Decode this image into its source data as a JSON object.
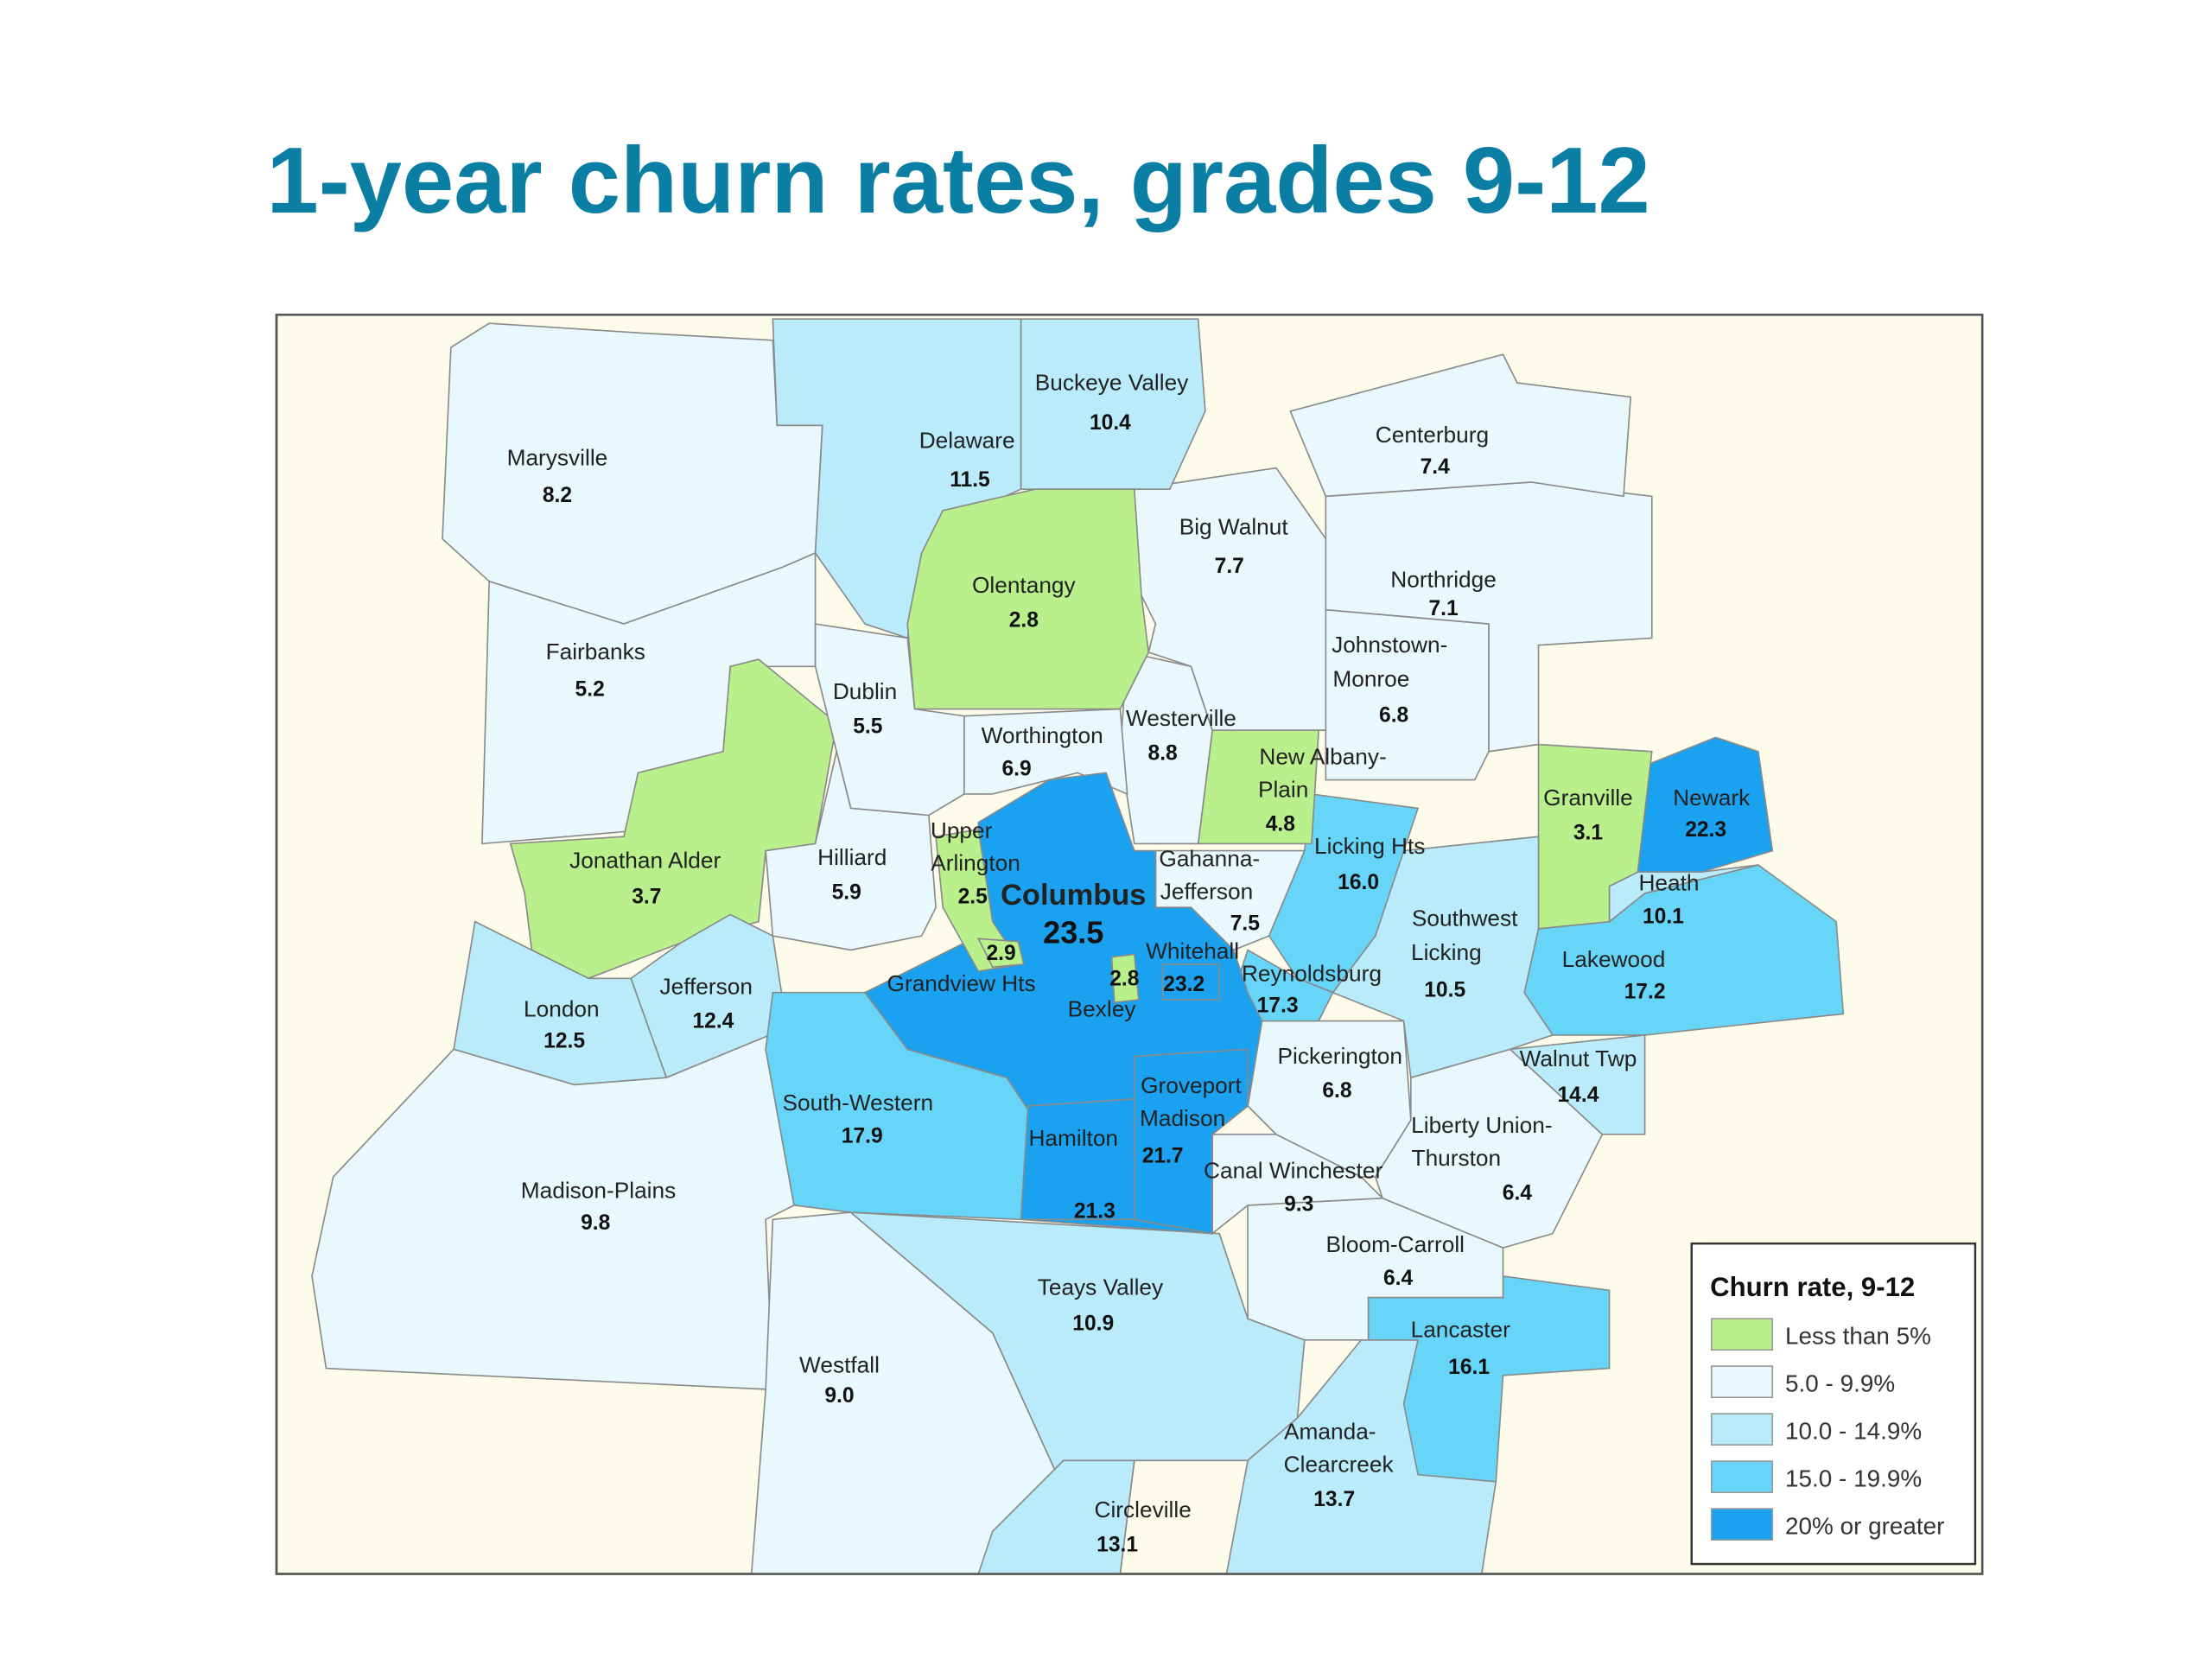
{
  "title": "1-year churn rates, grades 9-12",
  "colors": {
    "title": "#0b7ea3",
    "background_outside": "#fdfbea",
    "classes": [
      "#b9f08c",
      "#e9f8fc",
      "#b9ebfa",
      "#66d5f8",
      "#1aa2f0"
    ]
  },
  "legend": {
    "title": "Churn rate, 9-12",
    "items": [
      {
        "label": "Less than 5%",
        "class": 0
      },
      {
        "label": "5.0 - 9.9%",
        "class": 1
      },
      {
        "label": "10.0 - 14.9%",
        "class": 2
      },
      {
        "label": "15.0 - 19.9%",
        "class": 3
      },
      {
        "label": "20% or greater",
        "class": 4
      }
    ]
  },
  "chart_data": {
    "type": "choropleth",
    "title": "1-year churn rates, grades 9-12",
    "legend_title": "Churn rate, 9-12",
    "legend_position": "bottom-right",
    "districts": [
      {
        "name": "Marysville",
        "value": "8.2",
        "class": 1
      },
      {
        "name": "Fairbanks",
        "value": "5.2",
        "class": 1
      },
      {
        "name": "Jonathan Alder",
        "value": "3.7",
        "class": 0
      },
      {
        "name": "London",
        "value": "12.5",
        "class": 2
      },
      {
        "name": "Jefferson",
        "value": "12.4",
        "class": 2
      },
      {
        "name": "Madison-Plains",
        "value": "9.8",
        "class": 1
      },
      {
        "name": "Westfall",
        "value": "9.0",
        "class": 1
      },
      {
        "name": "Teays Valley",
        "value": "10.9",
        "class": 2
      },
      {
        "name": "Circleville",
        "value": "13.1",
        "class": 2
      },
      {
        "name": "Amanda-Clearcreek",
        "value": "13.7",
        "class": 2
      },
      {
        "name": "Lancaster",
        "value": "16.1",
        "class": 3
      },
      {
        "name": "Bloom-Carroll",
        "value": "6.4",
        "class": 1
      },
      {
        "name": "Canal Winchester",
        "value": "9.3",
        "class": 1
      },
      {
        "name": "Pickerington",
        "value": "6.8",
        "class": 1
      },
      {
        "name": "Liberty Union-Thurston",
        "value": "6.4",
        "class": 1
      },
      {
        "name": "Walnut Twp",
        "value": "14.4",
        "class": 2
      },
      {
        "name": "Lakewood",
        "value": "17.2",
        "class": 3
      },
      {
        "name": "Heath",
        "value": "10.1",
        "class": 2
      },
      {
        "name": "Newark",
        "value": "22.3",
        "class": 4
      },
      {
        "name": "Granville",
        "value": "3.1",
        "class": 0
      },
      {
        "name": "Southwest Licking",
        "value": "10.5",
        "class": 2
      },
      {
        "name": "Licking Hts",
        "value": "16.0",
        "class": 3
      },
      {
        "name": "Reynoldsburg",
        "value": "17.3",
        "class": 3
      },
      {
        "name": "Gahanna-Jefferson",
        "value": "7.5",
        "class": 1
      },
      {
        "name": "New Albany-Plain",
        "value": "4.8",
        "class": 0
      },
      {
        "name": "Westerville",
        "value": "8.8",
        "class": 1
      },
      {
        "name": "Big Walnut",
        "value": "7.7",
        "class": 1
      },
      {
        "name": "Johnstown-Monroe",
        "value": "6.8",
        "class": 1
      },
      {
        "name": "Northridge",
        "value": "7.1",
        "class": 1
      },
      {
        "name": "Centerburg",
        "value": "7.4",
        "class": 1
      },
      {
        "name": "Buckeye Valley",
        "value": "10.4",
        "class": 2
      },
      {
        "name": "Delaware",
        "value": "11.5",
        "class": 2
      },
      {
        "name": "Olentangy",
        "value": "2.8",
        "class": 0
      },
      {
        "name": "Dublin",
        "value": "5.5",
        "class": 1
      },
      {
        "name": "Worthington",
        "value": "6.9",
        "class": 1
      },
      {
        "name": "Hilliard",
        "value": "5.9",
        "class": 1
      },
      {
        "name": "South-Western",
        "value": "17.9",
        "class": 3
      },
      {
        "name": "Columbus",
        "value": "23.5",
        "class": 4
      },
      {
        "name": "Hamilton",
        "value": "21.3",
        "class": 4
      },
      {
        "name": "Groveport Madison",
        "value": "21.7",
        "class": 4
      },
      {
        "name": "Upper Arlington",
        "value": "2.5",
        "class": 0
      },
      {
        "name": "Grandview Hts",
        "value": "2.9",
        "class": 0
      },
      {
        "name": "Bexley",
        "value": "2.8",
        "class": 0
      },
      {
        "name": "Whitehall",
        "value": "23.2",
        "class": 4
      }
    ]
  }
}
